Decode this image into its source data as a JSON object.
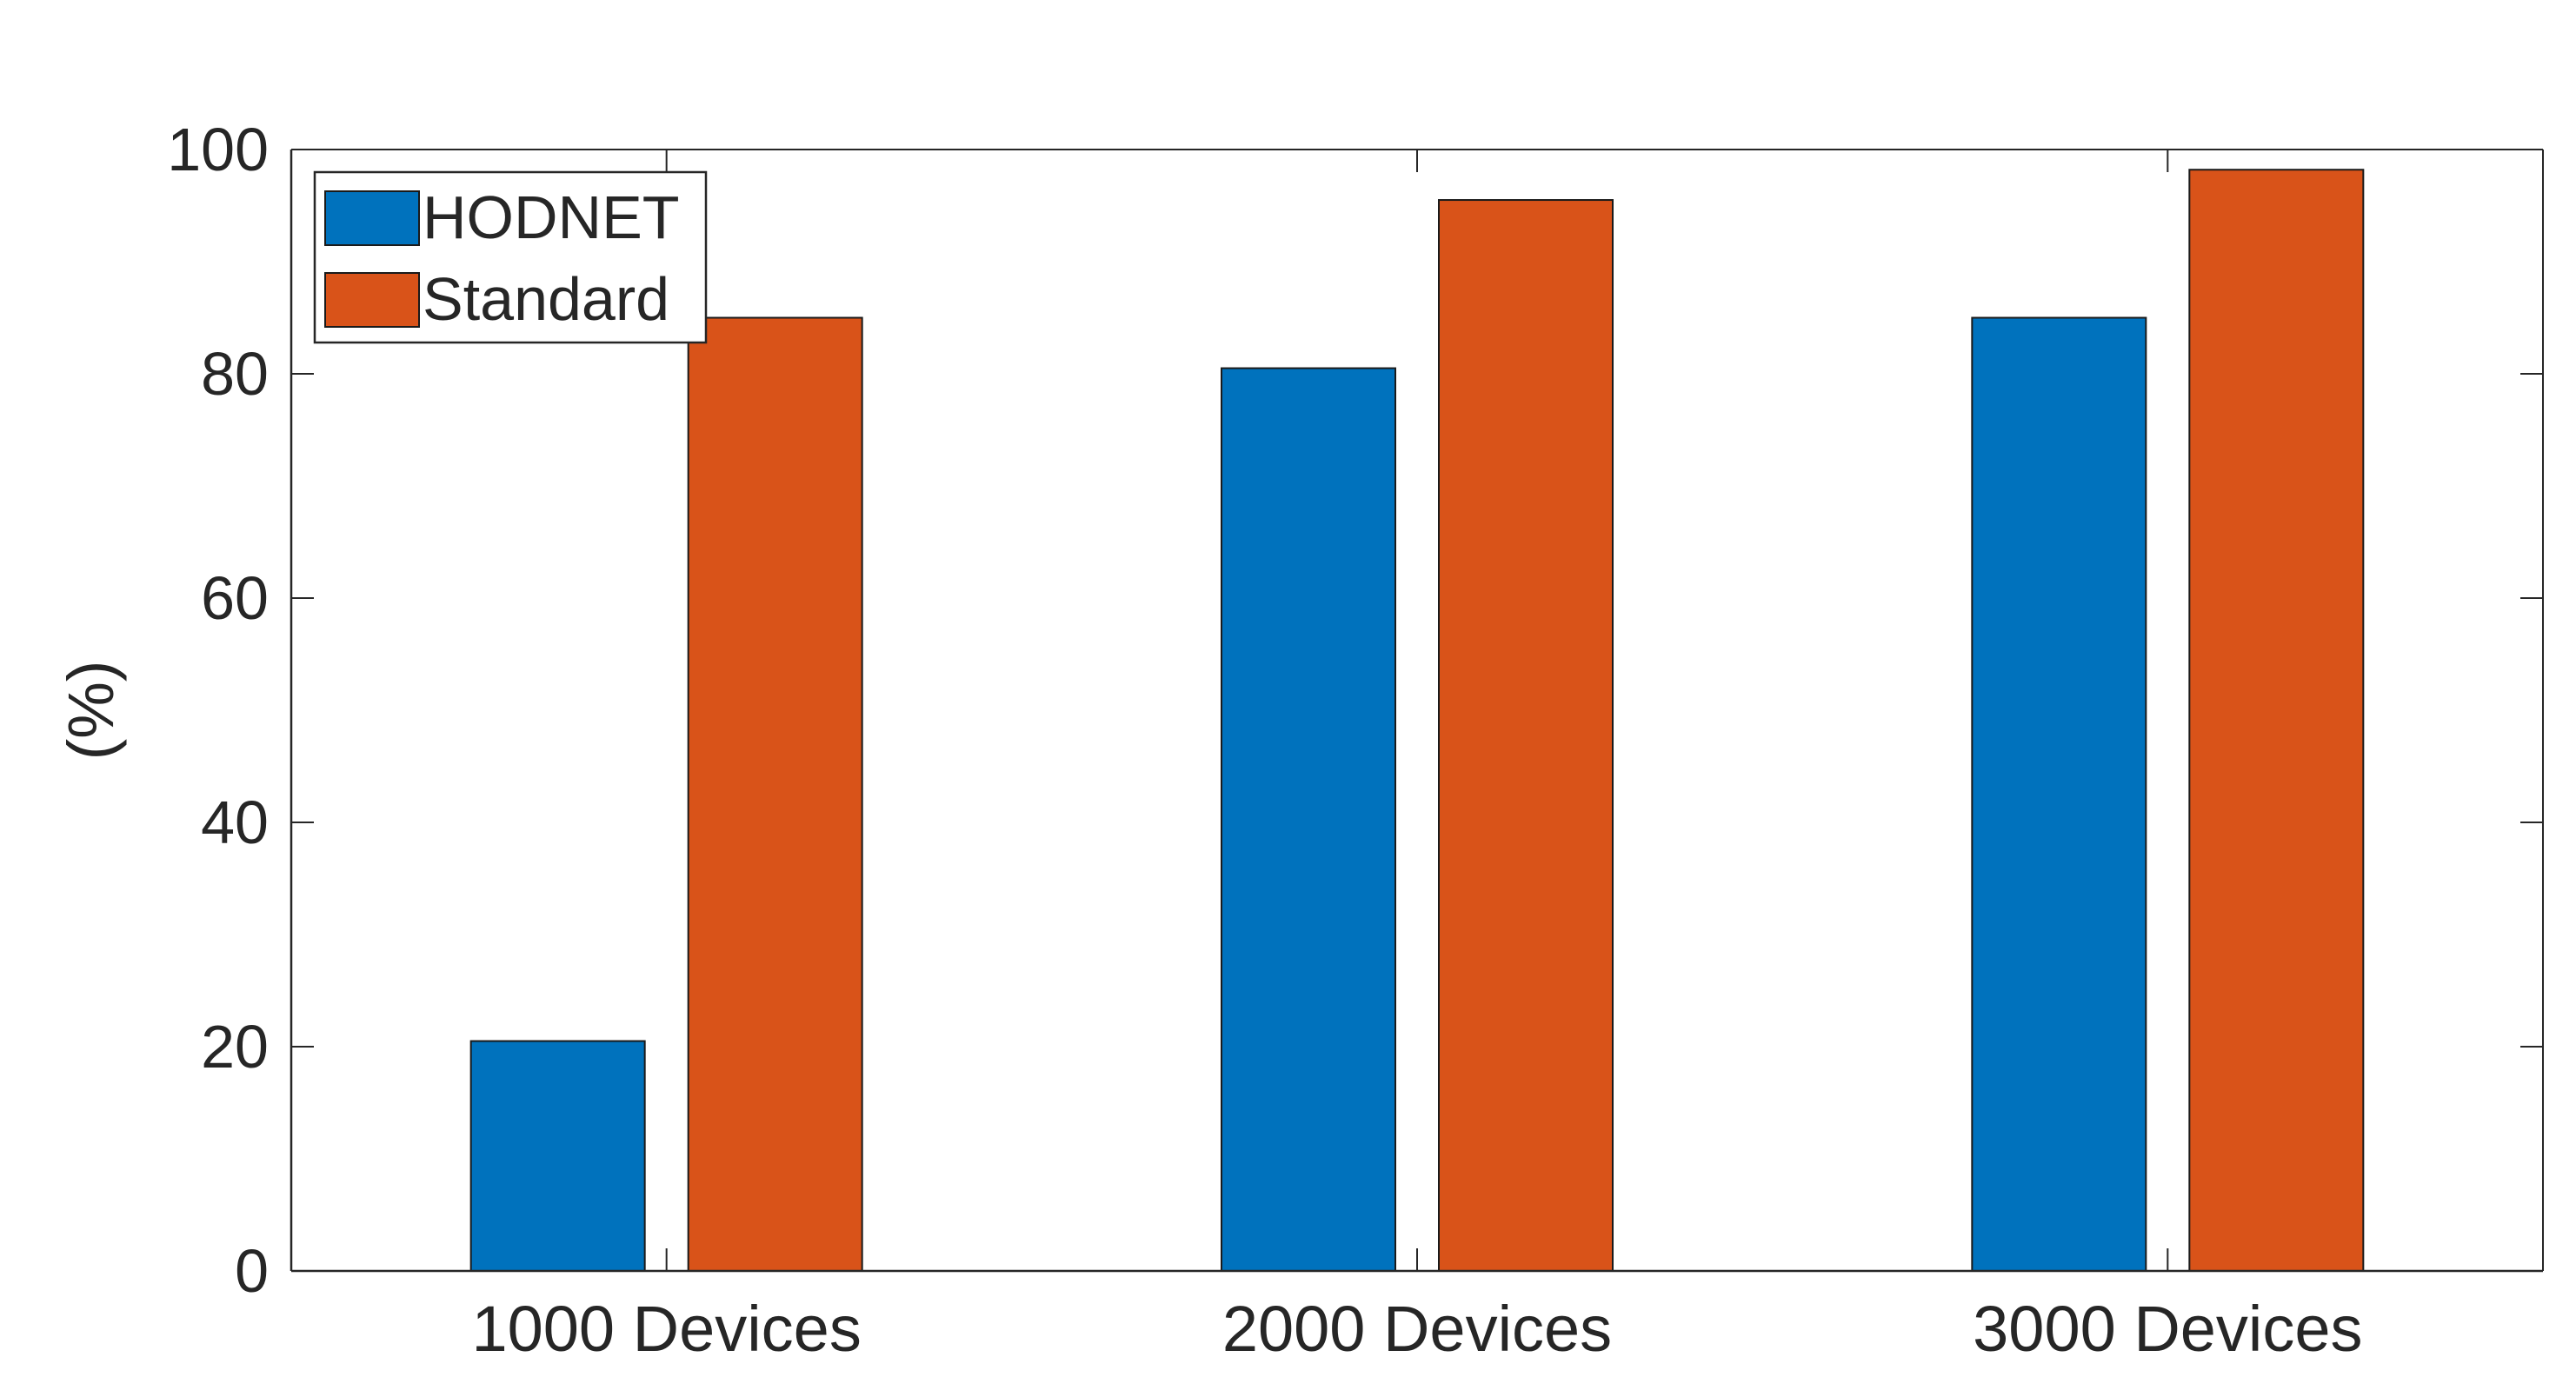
{
  "chart_data": {
    "type": "bar",
    "title": "",
    "xlabel": "",
    "ylabel": "(%)",
    "ylim": [
      0,
      100
    ],
    "yticks": [
      0,
      20,
      40,
      60,
      80,
      100
    ],
    "categories": [
      "1000 Devices",
      "2000 Devices",
      "3000 Devices"
    ],
    "series": [
      {
        "name": "HODNET",
        "color": "#0072BD",
        "values": [
          20.5,
          80.5,
          85
        ]
      },
      {
        "name": "Standard",
        "color": "#D95319",
        "values": [
          85,
          95.5,
          98.2
        ]
      }
    ],
    "legend_position": "top-left",
    "grid": false
  }
}
